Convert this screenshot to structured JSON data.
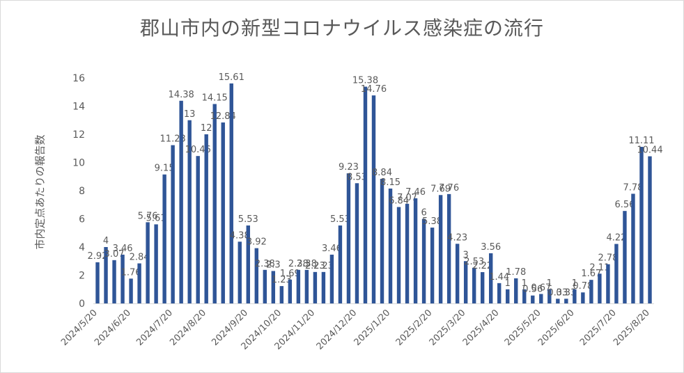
{
  "chart_data": {
    "type": "bar",
    "title": "郡山市内の新型コロナウイルス感染症の流行",
    "ylabel": "市内定点あたりの報告数",
    "xlabel": "",
    "ylim": [
      0,
      16
    ],
    "yticks": [
      0,
      2,
      4,
      6,
      8,
      10,
      12,
      14,
      16
    ],
    "grid": false,
    "legend": "none",
    "bar_color": "#2f5597",
    "x_tick_labels": [
      "2024/5/20",
      "2024/6/20",
      "2024/7/20",
      "2024/8/20",
      "2024/9/20",
      "2024/10/20",
      "2024/11/20",
      "2024/12/20",
      "2025/1/20",
      "2025/2/20",
      "2025/3/20",
      "2025/4/20",
      "2025/5/20",
      "2025/6/20",
      "2025/7/20",
      "2025/8/20"
    ],
    "values": [
      2.92,
      4,
      3.07,
      3.46,
      1.76,
      2.84,
      5.76,
      5.61,
      9.15,
      11.23,
      14.38,
      13,
      10.46,
      12,
      14.15,
      12.84,
      15.61,
      4.38,
      5.53,
      3.92,
      2.38,
      2.3,
      1.23,
      1.69,
      2.38,
      2.38,
      2.23,
      2.23,
      3.46,
      5.53,
      9.23,
      8.53,
      15.38,
      14.76,
      8.84,
      8.15,
      6.84,
      7.07,
      7.46,
      6,
      5.38,
      7.69,
      7.76,
      4.23,
      3,
      2.53,
      2.22,
      3.56,
      1.44,
      1,
      1.78,
      1,
      0.56,
      0.67,
      1,
      0.33,
      0.33,
      1,
      0.78,
      1.67,
      2.11,
      2.78,
      4.22,
      6.56,
      7.78,
      11.11,
      10.44
    ]
  }
}
